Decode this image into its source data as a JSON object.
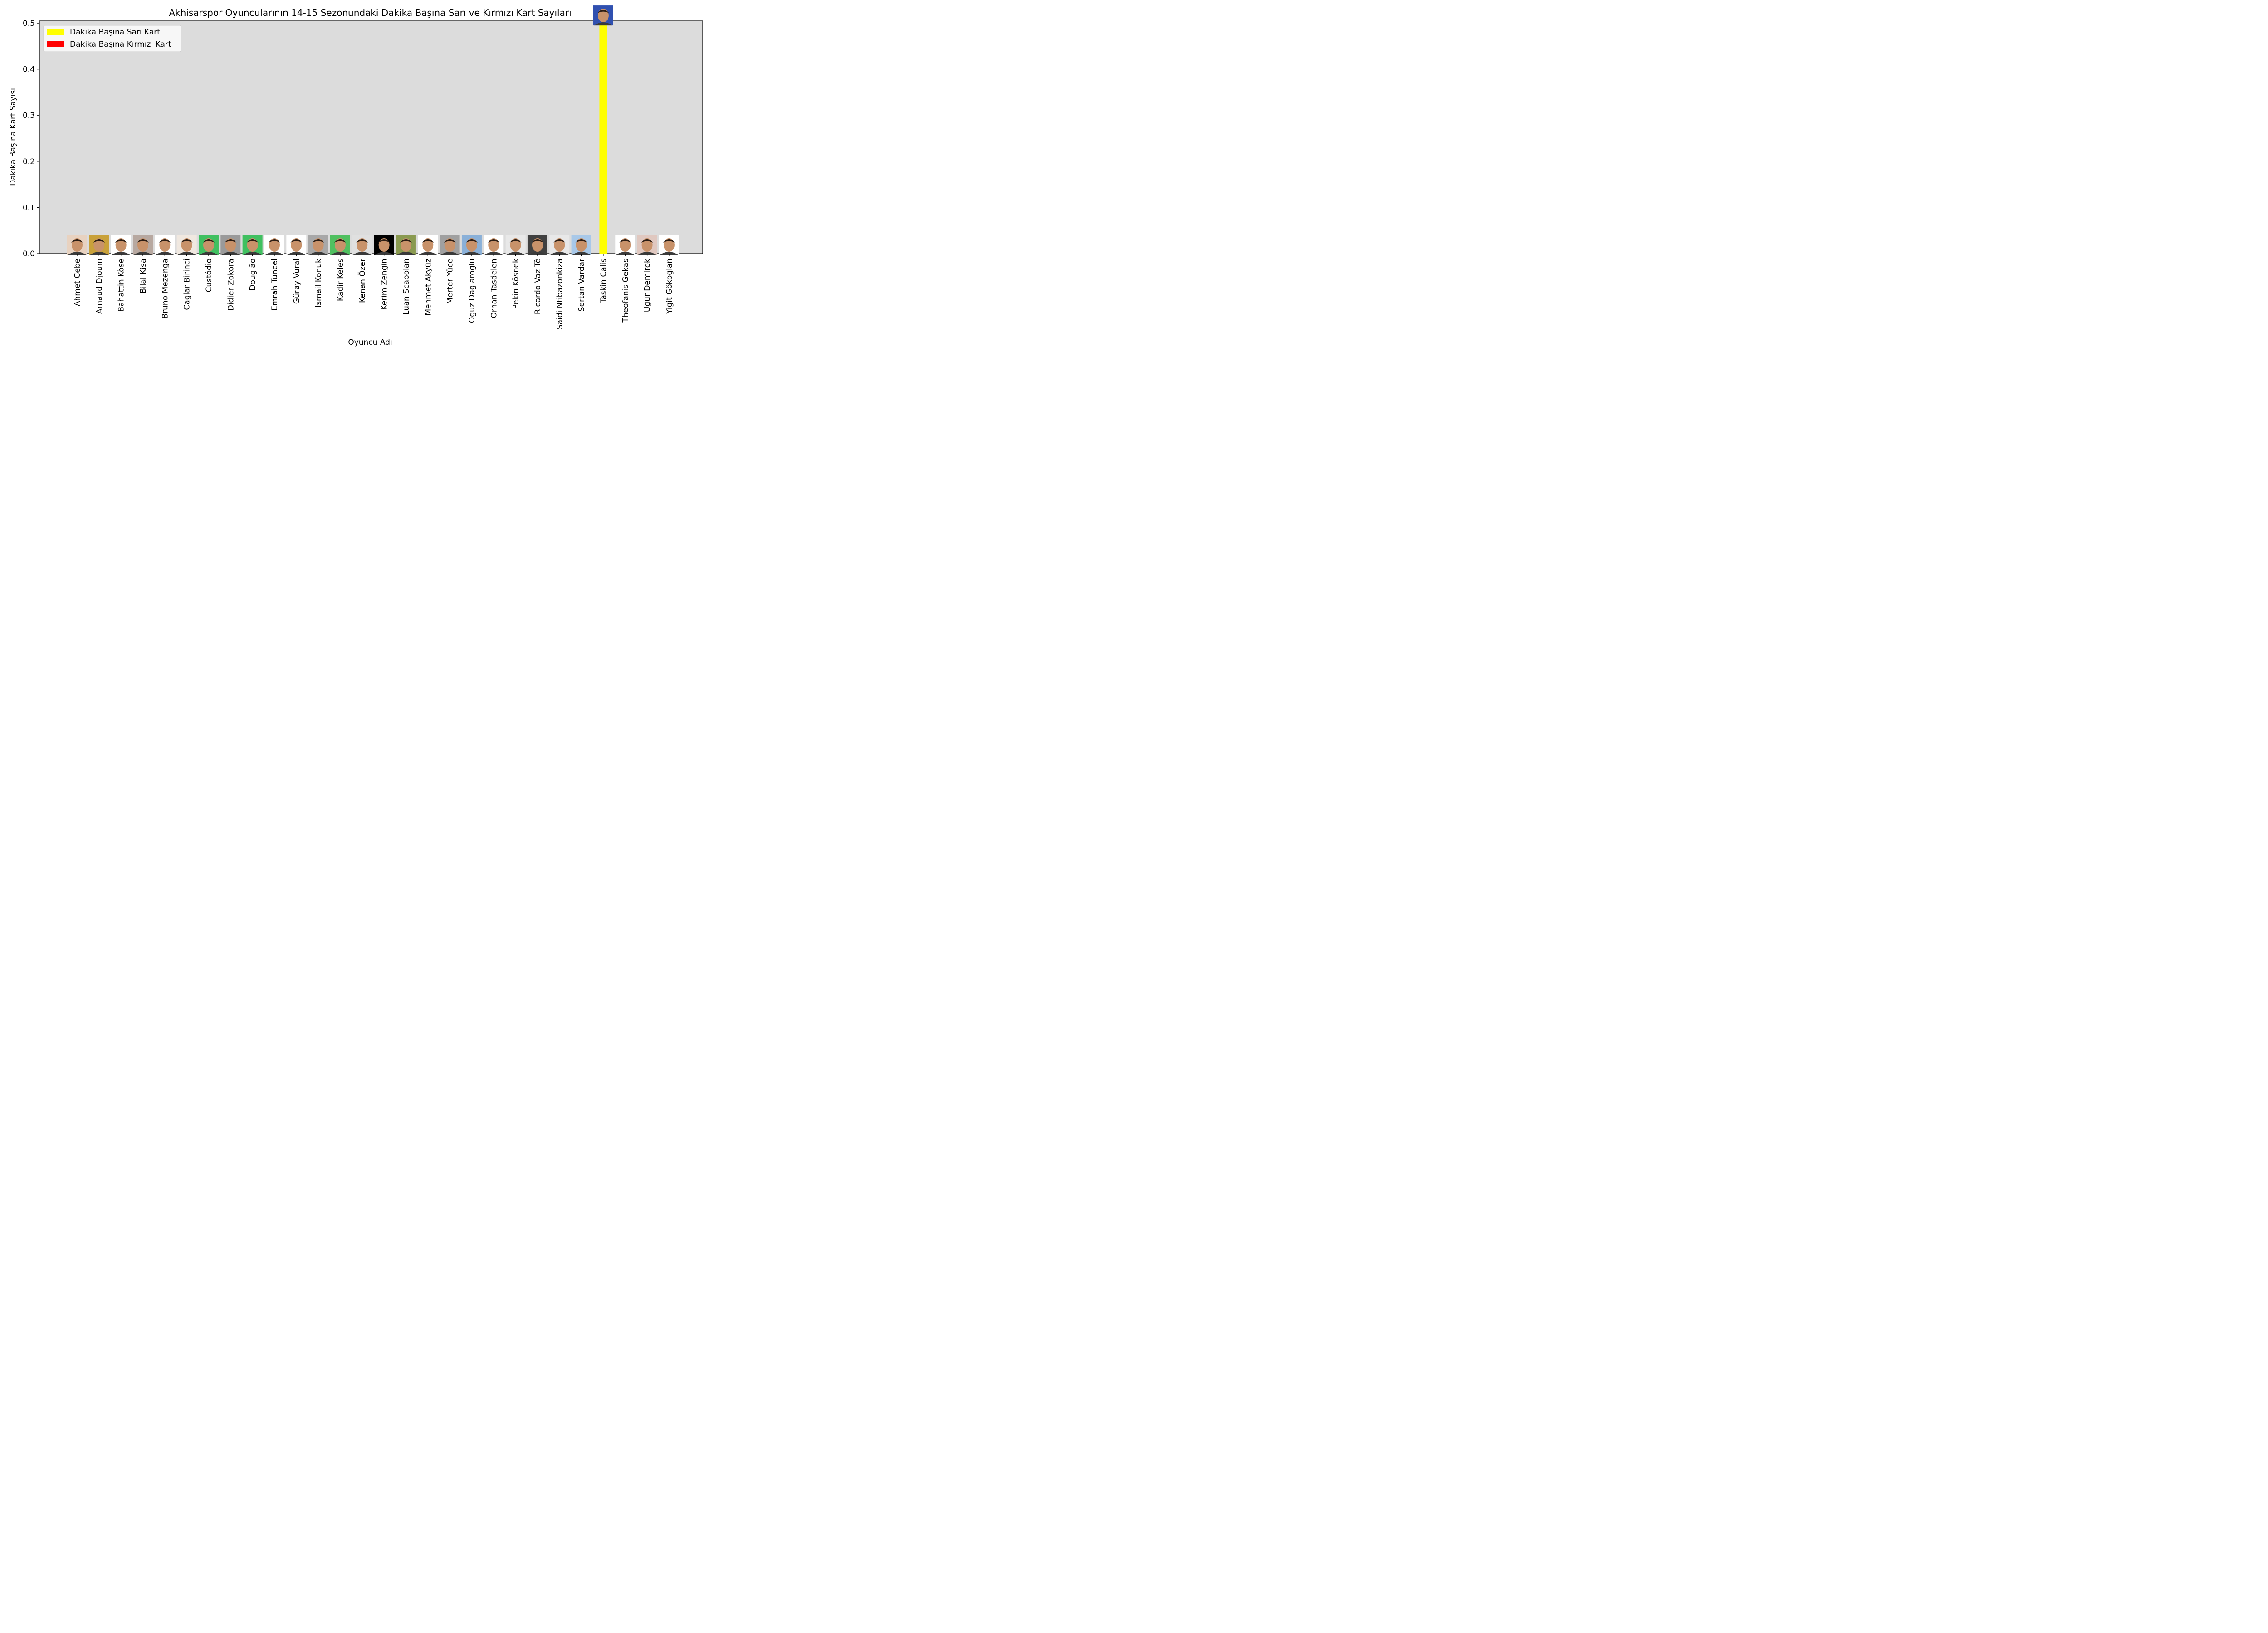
{
  "chart_data": {
    "type": "bar",
    "title": "Akhisarspor Oyuncularının 14-15 Sezonundaki Dakika Başına Sarı ve Kırmızı Kart Sayıları",
    "xlabel": "Oyuncu Adı",
    "ylabel": "Dakika Başına Kart Sayısı",
    "ylim": [
      0,
      0.505
    ],
    "yticks": [
      "0.0",
      "0.1",
      "0.2",
      "0.3",
      "0.4",
      "0.5"
    ],
    "ytick_values": [
      0,
      0.1,
      0.2,
      0.3,
      0.4,
      0.5
    ],
    "background_color": "#dcdcdc",
    "grid": false,
    "legend_position": "top-left",
    "categories": [
      "Ahmet Cebe",
      "Arnaud Djoum",
      "Bahattin Köse",
      "Bilal Kisa",
      "Bruno Mezenga",
      "Caglar Birinci",
      "Custódio",
      "Didier Zokora",
      "Douglão",
      "Emrah Tuncel",
      "Güray Vural",
      "Ismail Konuk",
      "Kadir Keles",
      "Kenan Özer",
      "Kerim Zengin",
      "Luan Scapolan",
      "Mehmet Akyüz",
      "Merter Yüce",
      "Oguz Daglaroglu",
      "Orhan Tasdelen",
      "Pekin Kösnek",
      "Ricardo Vaz Tê",
      "Saidi Ntibazonkiza",
      "Sertan Vardar",
      "Taskin Calis",
      "Theofanis Gekas",
      "Ugur Demirok",
      "Yigit Gökoglan"
    ],
    "series": [
      {
        "name": "Dakika Başına Sarı Kart",
        "color": "#ffff00",
        "values": [
          0,
          0,
          0,
          0,
          0,
          0,
          0,
          0,
          0,
          0,
          0,
          0,
          0,
          0,
          0,
          0,
          0,
          0,
          0,
          0,
          0,
          0,
          0,
          0,
          0.5,
          0,
          0,
          0
        ]
      },
      {
        "name": "Dakika Başına Kırmızı Kart",
        "color": "#ff0000",
        "values": [
          0,
          0,
          0,
          0,
          0,
          0,
          0,
          0,
          0,
          0,
          0,
          0,
          0,
          0,
          0,
          0,
          0,
          0,
          0,
          0,
          0,
          0,
          0,
          0,
          0,
          0,
          0,
          0
        ]
      }
    ],
    "player_photo_colors": [
      "#e8d2c0",
      "#c9a13a",
      "#ffffff",
      "#b7a8a0",
      "#ffffff",
      "#f0e8e0",
      "#40c060",
      "#9a9a9a",
      "#40c060",
      "#ffffff",
      "#ffffff",
      "#a8a8a8",
      "#50c060",
      "#e0e0e0",
      "#000000",
      "#8a9a50",
      "#ffffff",
      "#a0a0a0",
      "#8ab0d8",
      "#ffffff",
      "#e8e8e8",
      "#404040",
      "#e8e8e8",
      "#a8c8e8",
      "#3050b0",
      "#ffffff",
      "#e0c8c0",
      "#ffffff"
    ]
  }
}
